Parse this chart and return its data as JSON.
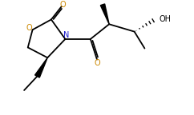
{
  "bg_color": "#ffffff",
  "line_color": "#000000",
  "bond_lw": 1.3,
  "N_color": "#1a1acd",
  "O_color": "#cc8800",
  "figsize": [
    2.42,
    1.44
  ],
  "dpi": 100,
  "xlim": [
    0.0,
    10.0
  ],
  "ylim": [
    0.0,
    6.0
  ]
}
